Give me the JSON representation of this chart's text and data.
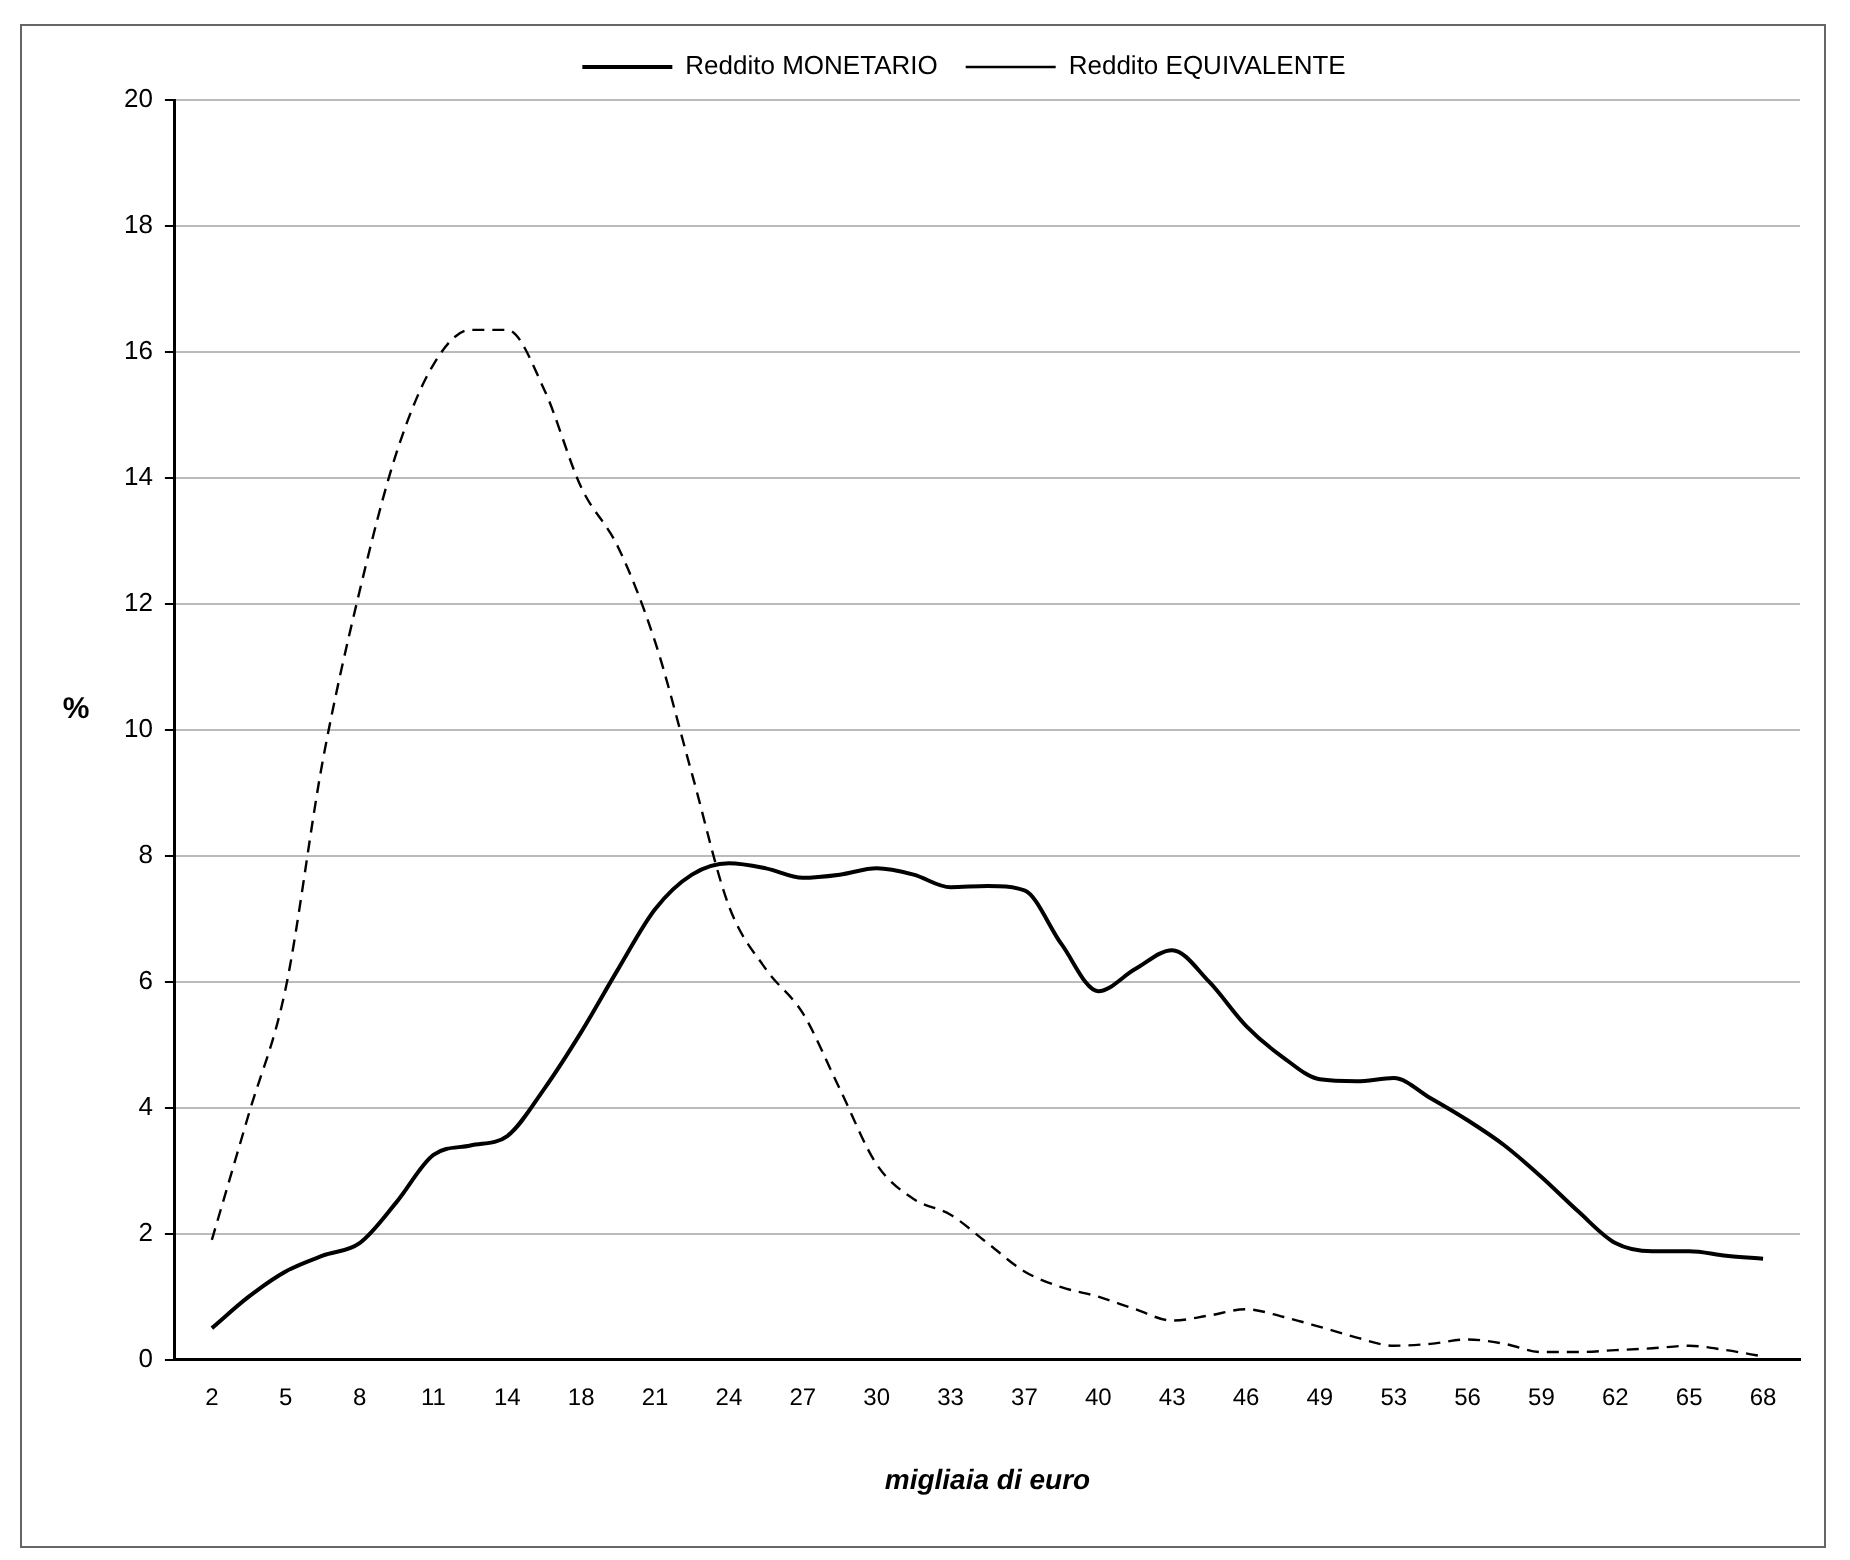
{
  "chart_data": {
    "type": "line",
    "xlabel": "migliaia di euro",
    "ylabel": "%",
    "categories": [
      null,
      "2",
      null,
      "5",
      null,
      "8",
      null,
      "11",
      null,
      "14",
      null,
      "18",
      null,
      "21",
      null,
      "24",
      null,
      "27",
      null,
      "30",
      null,
      "33",
      null,
      "37",
      null,
      "40",
      null,
      "43",
      null,
      "46",
      null,
      "49",
      null,
      "53",
      null,
      "56",
      null,
      "59",
      null,
      "62",
      null,
      "65",
      null,
      "68",
      null
    ],
    "series": [
      {
        "name": "Reddito MONETARIO",
        "color": "#000000",
        "line_style": "solid",
        "values": [
          null,
          0.5,
          1.0,
          1.4,
          1.65,
          1.85,
          2.5,
          3.25,
          3.4,
          3.55,
          4.3,
          5.2,
          6.2,
          7.15,
          7.7,
          7.88,
          7.8,
          7.65,
          7.7,
          7.8,
          7.7,
          7.5,
          7.52,
          7.45,
          6.6,
          5.85,
          6.2,
          6.5,
          6.0,
          5.3,
          4.8,
          4.45,
          4.42,
          4.47,
          4.15,
          3.8,
          3.4,
          2.9,
          2.35,
          1.85,
          1.72,
          1.72,
          1.65,
          1.6,
          null
        ]
      },
      {
        "name": "Reddito EQUIVALENTE",
        "color": "#000000",
        "line_style": "dashed",
        "values": [
          null,
          1.9,
          3.9,
          5.9,
          9.5,
          12.2,
          14.4,
          15.8,
          16.35,
          16.35,
          15.4,
          13.85,
          12.9,
          11.4,
          9.3,
          7.2,
          6.2,
          5.5,
          4.3,
          3.1,
          2.55,
          2.3,
          1.85,
          1.4,
          1.15,
          1.0,
          0.8,
          0.62,
          0.7,
          0.8,
          0.68,
          0.52,
          0.35,
          0.22,
          0.25,
          0.32,
          0.25,
          0.12,
          0.12,
          0.15,
          0.18,
          0.22,
          0.15,
          0.05,
          null
        ]
      }
    ],
    "ylim": [
      0,
      20
    ],
    "yticks": [
      0,
      2,
      4,
      6,
      8,
      10,
      12,
      14,
      16,
      18,
      20
    ],
    "grid": "y",
    "legend": "top",
    "marker": "none"
  }
}
